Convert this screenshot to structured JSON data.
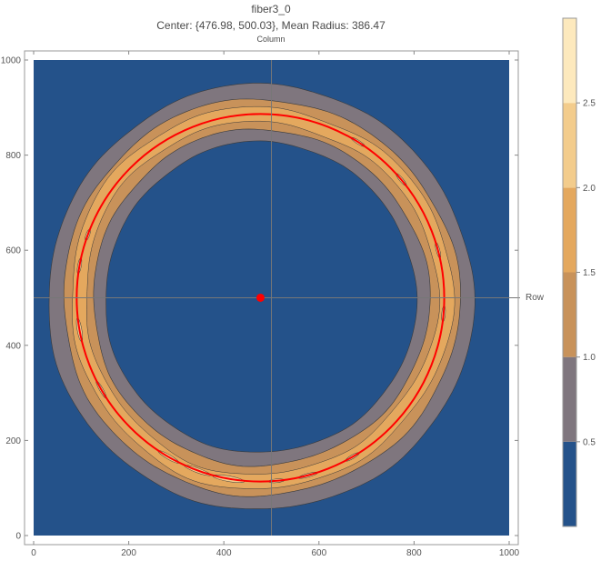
{
  "chart_data": {
    "type": "contour",
    "title": "fiber3_0",
    "subtitle": "Center: {476.98, 500.03}, Mean Radius: 386.47",
    "top_axis_label": "Column",
    "right_axis_label": "Row",
    "xlim": [
      0,
      1000
    ],
    "ylim": [
      0,
      1000
    ],
    "x_ticks": [
      "0",
      "200",
      "400",
      "600",
      "800",
      "1000"
    ],
    "y_ticks": [
      "0",
      "200",
      "400",
      "600",
      "800",
      "1000"
    ],
    "crosshair": {
      "x": 500,
      "y": 500
    },
    "fit_center": {
      "x": 476.98,
      "y": 500.03
    },
    "fit_radius": 386.47,
    "contour_bands": [
      {
        "range": [
          0.0,
          0.5
        ],
        "color": "#24528a"
      },
      {
        "range": [
          0.5,
          1.0
        ],
        "color": "#7f767e"
      },
      {
        "range": [
          1.0,
          1.5
        ],
        "color": "#c8925a"
      },
      {
        "range": [
          1.5,
          2.0
        ],
        "color": "#e4a85e"
      },
      {
        "range": [
          2.0,
          2.5
        ],
        "color": "#f3cc8c"
      },
      {
        "range": [
          2.5,
          3.0
        ],
        "color": "#fde9bd"
      }
    ],
    "colorbar_ticks": [
      "0.5",
      "1.0",
      "1.5",
      "2.0",
      "2.5"
    ],
    "fit_circle_color": "#ff0000",
    "center_marker_color": "#ff0000"
  }
}
